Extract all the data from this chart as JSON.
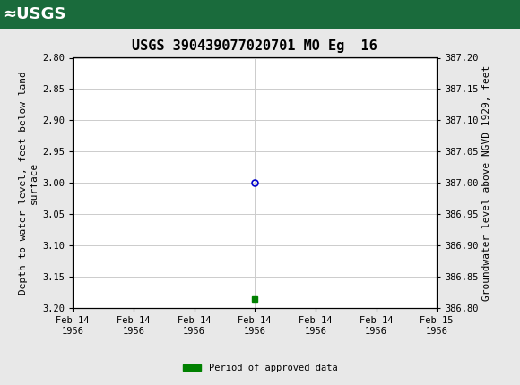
{
  "title": "USGS 390439077020701 MO Eg  16",
  "ylabel_left": "Depth to water level, feet below land\nsurface",
  "ylabel_right": "Groundwater level above NGVD 1929, feet",
  "ylim_left": [
    3.2,
    2.8
  ],
  "ylim_right": [
    386.8,
    387.2
  ],
  "yticks_left": [
    2.8,
    2.85,
    2.9,
    2.95,
    3.0,
    3.05,
    3.1,
    3.15,
    3.2
  ],
  "yticks_right": [
    386.8,
    386.85,
    386.9,
    386.95,
    387.0,
    387.05,
    387.1,
    387.15,
    387.2
  ],
  "data_point_x_hours": 12,
  "data_point_y": 3.0,
  "green_square_x_hours": 12,
  "green_square_y": 3.185,
  "header_color": "#1a6b3c",
  "grid_color": "#cccccc",
  "bg_color": "#e8e8e8",
  "plot_bg_color": "#ffffff",
  "circle_color": "#0000cc",
  "green_color": "#008000",
  "legend_label": "Period of approved data",
  "font_family": "monospace",
  "title_fontsize": 11,
  "tick_fontsize": 7.5,
  "label_fontsize": 8,
  "xtick_labels": [
    "Feb 14\n1956",
    "Feb 14\n1956",
    "Feb 14\n1956",
    "Feb 14\n1956",
    "Feb 14\n1956",
    "Feb 14\n1956",
    "Feb 15\n1956"
  ],
  "xtick_hours": [
    0,
    4,
    8,
    12,
    16,
    20,
    24
  ]
}
